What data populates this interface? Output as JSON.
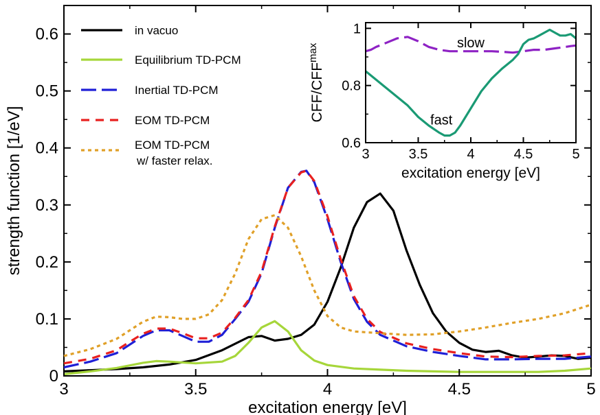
{
  "chart_data": [
    {
      "type": "line",
      "xlabel": "excitation energy [eV]",
      "ylabel": "strength function [1/eV]",
      "xlim": [
        3,
        5
      ],
      "ylim": [
        0,
        0.65
      ],
      "xticks": [
        3,
        3.5,
        4,
        4.5,
        5
      ],
      "xtick_labels": [
        "3",
        "3.5",
        "4",
        "4.5",
        "5"
      ],
      "yticks": [
        0,
        0.1,
        0.2,
        0.3,
        0.4,
        0.5,
        0.6
      ],
      "ytick_labels": [
        "0",
        "0.1",
        "0.2",
        "0.3",
        "0.4",
        "0.5",
        "0.6"
      ],
      "grid": false,
      "legend_position": "top-left",
      "series": [
        {
          "name": "in vacuo",
          "color": "#000000",
          "style": "solid",
          "x": [
            3.0,
            3.1,
            3.2,
            3.3,
            3.4,
            3.5,
            3.6,
            3.7,
            3.75,
            3.8,
            3.85,
            3.9,
            3.95,
            4.0,
            4.05,
            4.1,
            4.15,
            4.2,
            4.25,
            4.3,
            4.35,
            4.4,
            4.45,
            4.5,
            4.55,
            4.6,
            4.65,
            4.7,
            4.75,
            4.8,
            4.85,
            4.9,
            4.95,
            5.0
          ],
          "y": [
            0.008,
            0.01,
            0.012,
            0.015,
            0.02,
            0.028,
            0.045,
            0.068,
            0.07,
            0.062,
            0.065,
            0.072,
            0.09,
            0.13,
            0.19,
            0.26,
            0.305,
            0.32,
            0.29,
            0.22,
            0.16,
            0.11,
            0.078,
            0.058,
            0.046,
            0.042,
            0.044,
            0.036,
            0.032,
            0.034,
            0.036,
            0.035,
            0.03,
            0.032
          ]
        },
        {
          "name": "Equilibrium TD-PCM",
          "color": "#a6d63a",
          "style": "solid",
          "x": [
            3.0,
            3.1,
            3.2,
            3.3,
            3.35,
            3.4,
            3.5,
            3.6,
            3.65,
            3.7,
            3.75,
            3.8,
            3.85,
            3.9,
            3.95,
            4.0,
            4.1,
            4.2,
            4.3,
            4.4,
            4.5,
            4.6,
            4.7,
            4.8,
            4.9,
            5.0
          ],
          "y": [
            0.003,
            0.008,
            0.014,
            0.023,
            0.026,
            0.025,
            0.022,
            0.025,
            0.035,
            0.058,
            0.085,
            0.096,
            0.078,
            0.045,
            0.027,
            0.019,
            0.013,
            0.011,
            0.009,
            0.008,
            0.007,
            0.007,
            0.007,
            0.007,
            0.009,
            0.013
          ]
        },
        {
          "name": "Inertial TD-PCM",
          "color": "#1f1fd6",
          "style": "longdash",
          "x": [
            3.0,
            3.1,
            3.2,
            3.25,
            3.3,
            3.35,
            3.4,
            3.45,
            3.5,
            3.55,
            3.6,
            3.65,
            3.7,
            3.75,
            3.8,
            3.85,
            3.9,
            3.92,
            3.95,
            4.0,
            4.05,
            4.1,
            4.15,
            4.2,
            4.3,
            4.4,
            4.5,
            4.6,
            4.7,
            4.8,
            4.9,
            5.0
          ],
          "y": [
            0.015,
            0.025,
            0.04,
            0.055,
            0.07,
            0.08,
            0.08,
            0.07,
            0.06,
            0.06,
            0.072,
            0.1,
            0.13,
            0.18,
            0.26,
            0.33,
            0.358,
            0.36,
            0.34,
            0.275,
            0.2,
            0.135,
            0.095,
            0.072,
            0.052,
            0.042,
            0.035,
            0.029,
            0.029,
            0.03,
            0.03,
            0.034
          ]
        },
        {
          "name": "EOM TD-PCM",
          "color": "#e8201f",
          "style": "dash",
          "x": [
            3.0,
            3.1,
            3.2,
            3.25,
            3.3,
            3.35,
            3.4,
            3.45,
            3.5,
            3.55,
            3.6,
            3.65,
            3.7,
            3.75,
            3.8,
            3.85,
            3.9,
            3.92,
            3.95,
            4.0,
            4.05,
            4.1,
            4.15,
            4.2,
            4.3,
            4.4,
            4.5,
            4.6,
            4.7,
            4.8,
            4.9,
            5.0
          ],
          "y": [
            0.022,
            0.03,
            0.045,
            0.06,
            0.074,
            0.083,
            0.083,
            0.075,
            0.066,
            0.066,
            0.076,
            0.102,
            0.133,
            0.183,
            0.262,
            0.33,
            0.357,
            0.36,
            0.342,
            0.28,
            0.205,
            0.14,
            0.1,
            0.077,
            0.057,
            0.047,
            0.04,
            0.034,
            0.033,
            0.035,
            0.036,
            0.04
          ]
        },
        {
          "name": "EOM TD-PCM w/ faster relax.",
          "color": "#e0a028",
          "style": "dot",
          "x": [
            3.0,
            3.1,
            3.2,
            3.25,
            3.3,
            3.35,
            3.4,
            3.45,
            3.5,
            3.55,
            3.6,
            3.65,
            3.7,
            3.75,
            3.8,
            3.85,
            3.9,
            3.95,
            4.0,
            4.05,
            4.1,
            4.2,
            4.3,
            4.4,
            4.5,
            4.6,
            4.7,
            4.8,
            4.9,
            5.0
          ],
          "y": [
            0.035,
            0.047,
            0.065,
            0.08,
            0.095,
            0.104,
            0.103,
            0.1,
            0.1,
            0.108,
            0.133,
            0.18,
            0.24,
            0.275,
            0.282,
            0.26,
            0.21,
            0.15,
            0.105,
            0.085,
            0.078,
            0.075,
            0.072,
            0.073,
            0.078,
            0.085,
            0.093,
            0.1,
            0.11,
            0.125
          ]
        }
      ]
    },
    {
      "type": "line",
      "inset": true,
      "xlabel": "excitation energy [eV]",
      "ylabel_main": "CFF/CFF",
      "ylabel_sub": "max",
      "xlim": [
        3,
        5
      ],
      "ylim": [
        0.6,
        1.02
      ],
      "xticks": [
        3,
        3.5,
        4,
        4.5,
        5
      ],
      "xtick_labels": [
        "3",
        "3.5",
        "4",
        "4.5",
        "5"
      ],
      "yticks": [
        0.6,
        0.8,
        1.0
      ],
      "ytick_labels": [
        "0.6",
        "0.8",
        "1"
      ],
      "annotations": [
        {
          "text": "slow",
          "x": 4.0,
          "y": 0.95
        },
        {
          "text": "fast",
          "x": 3.72,
          "y": 0.68
        }
      ],
      "series": [
        {
          "label": "slow",
          "color": "#8e22c4",
          "style": "longdash",
          "x": [
            3.0,
            3.05,
            3.1,
            3.2,
            3.3,
            3.4,
            3.5,
            3.6,
            3.7,
            3.8,
            3.9,
            4.0,
            4.1,
            4.2,
            4.3,
            4.4,
            4.5,
            4.6,
            4.7,
            4.8,
            4.9,
            4.95,
            5.0
          ],
          "y": [
            0.92,
            0.925,
            0.935,
            0.95,
            0.965,
            0.97,
            0.955,
            0.935,
            0.925,
            0.92,
            0.92,
            0.92,
            0.92,
            0.92,
            0.918,
            0.915,
            0.92,
            0.925,
            0.925,
            0.93,
            0.935,
            0.938,
            0.94
          ]
        },
        {
          "label": "fast",
          "color": "#1a9a74",
          "style": "solid",
          "x": [
            3.0,
            3.1,
            3.2,
            3.3,
            3.4,
            3.5,
            3.6,
            3.7,
            3.75,
            3.8,
            3.85,
            3.9,
            4.0,
            4.1,
            4.2,
            4.3,
            4.4,
            4.45,
            4.5,
            4.55,
            4.6,
            4.65,
            4.7,
            4.75,
            4.8,
            4.85,
            4.9,
            4.95,
            5.0
          ],
          "y": [
            0.85,
            0.82,
            0.79,
            0.76,
            0.73,
            0.69,
            0.66,
            0.635,
            0.625,
            0.625,
            0.635,
            0.66,
            0.72,
            0.78,
            0.825,
            0.86,
            0.89,
            0.91,
            0.945,
            0.96,
            0.965,
            0.975,
            0.985,
            0.995,
            0.985,
            0.975,
            0.975,
            0.98,
            0.965
          ]
        }
      ]
    }
  ]
}
